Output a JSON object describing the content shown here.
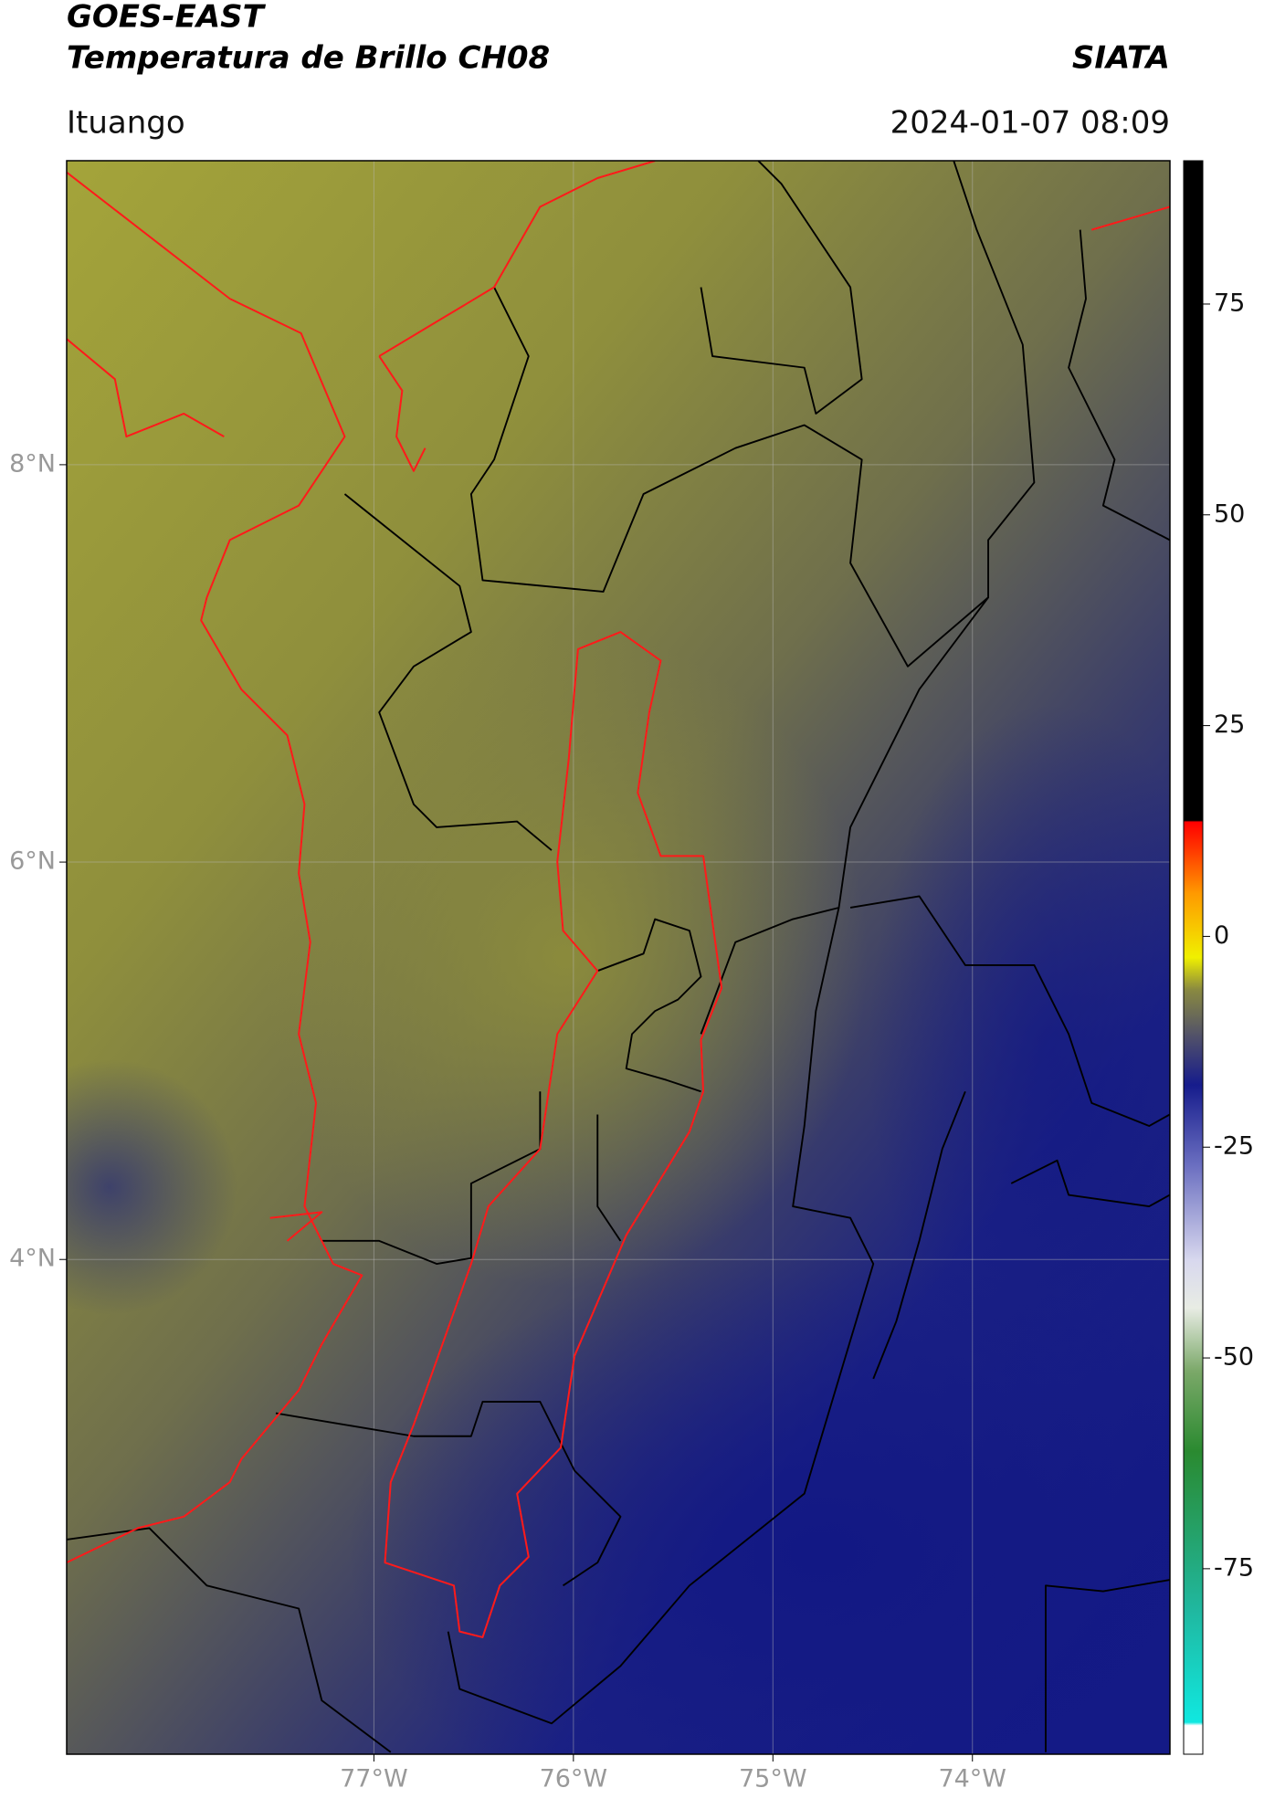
{
  "header": {
    "title": "GOES-EAST",
    "subtitle": "Temperatura de Brillo CH08",
    "brand": "SIATA",
    "location": "Ituango",
    "datetime": "2024-01-07 08:09"
  },
  "map": {
    "xlim": [
      -78.54,
      -73.01
    ],
    "ylim": [
      1.51,
      9.53
    ],
    "xticks": [
      {
        "value": -77,
        "label": "77°W"
      },
      {
        "value": -76,
        "label": "76°W"
      },
      {
        "value": -75,
        "label": "75°W"
      },
      {
        "value": -74,
        "label": "74°W"
      }
    ],
    "yticks": [
      {
        "value": 8,
        "label": "8°N"
      },
      {
        "value": 6,
        "label": "6°N"
      },
      {
        "value": 4,
        "label": "4°N"
      }
    ]
  },
  "colorbar": {
    "lim": [
      -97,
      92
    ],
    "ticks": [
      75,
      50,
      25,
      0,
      -25,
      -50,
      -75
    ]
  }
}
